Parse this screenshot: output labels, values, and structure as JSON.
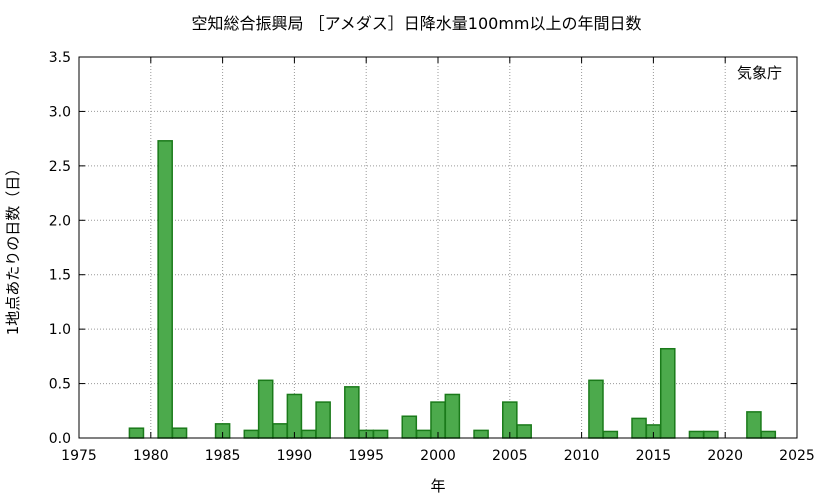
{
  "chart_data": {
    "type": "bar",
    "title": "空知総合振興局 ［アメダス］日降水量100mm以上の年間日数",
    "xlabel": "年",
    "ylabel": "1地点あたりの日数（日）",
    "annotation": "気象庁",
    "xlim": [
      1975,
      2025
    ],
    "ylim": [
      0,
      3.5
    ],
    "xticks": [
      "1975",
      "1980",
      "1985",
      "1990",
      "1995",
      "2000",
      "2005",
      "2010",
      "2015",
      "2020",
      "2025"
    ],
    "yticks": [
      "0.0",
      "0.5",
      "1.0",
      "1.5",
      "2.0",
      "2.5",
      "3.0",
      "3.5"
    ],
    "grid": true,
    "bar_color": "#4caa4c",
    "bar_edge_color": "#1a7a1a",
    "x": [
      1979,
      1981,
      1982,
      1985,
      1987,
      1988,
      1989,
      1990,
      1991,
      1992,
      1994,
      1995,
      1996,
      1998,
      1999,
      2000,
      2001,
      2003,
      2005,
      2006,
      2011,
      2012,
      2014,
      2015,
      2016,
      2018,
      2019,
      2022,
      2023
    ],
    "values": [
      0.09,
      2.73,
      0.09,
      0.13,
      0.07,
      0.53,
      0.13,
      0.4,
      0.07,
      0.33,
      0.47,
      0.07,
      0.07,
      0.2,
      0.07,
      0.33,
      0.4,
      0.07,
      0.33,
      0.12,
      0.53,
      0.06,
      0.18,
      0.12,
      0.82,
      0.06,
      0.06,
      0.24,
      0.06
    ]
  }
}
